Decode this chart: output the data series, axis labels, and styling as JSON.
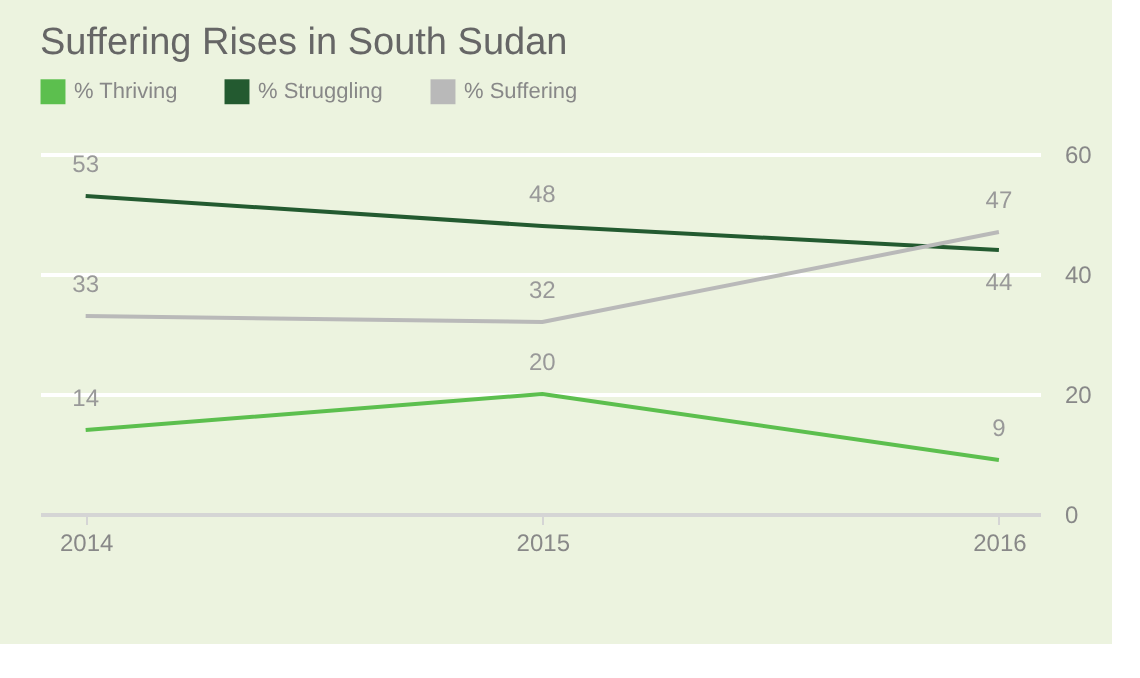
{
  "chart_data": {
    "type": "line",
    "title": "Suffering Rises in South Sudan",
    "categories": [
      "2014",
      "2015",
      "2016"
    ],
    "series": [
      {
        "name": "% Thriving",
        "color": "#5cbf4e",
        "values": [
          14,
          20,
          9
        ]
      },
      {
        "name": "% Struggling",
        "color": "#235a30",
        "values": [
          53,
          48,
          44
        ]
      },
      {
        "name": "% Suffering",
        "color": "#b9b9b9",
        "values": [
          33,
          32,
          47
        ]
      }
    ],
    "ylim": [
      0,
      60
    ],
    "yticks": [
      0,
      20,
      40,
      60
    ],
    "grid": "y",
    "legend": "top left",
    "data_labels": true,
    "marker": "none",
    "line_style": "solid"
  }
}
